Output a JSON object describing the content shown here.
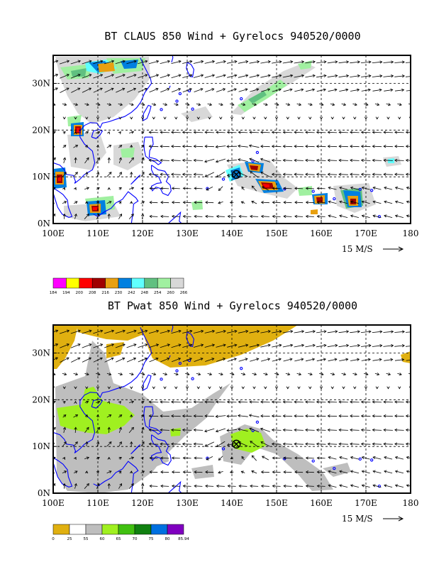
{
  "panel1": {
    "title": "BT CLAUS 850 Wind + Gyrelocs 940520/0000",
    "x_ticks": [
      "100E",
      "110E",
      "120E",
      "130E",
      "140E",
      "150E",
      "160E",
      "170E",
      "180"
    ],
    "y_ticks": [
      "0N",
      "10N",
      "20N",
      "30N"
    ],
    "ref_vector": "15 M/S",
    "colorbar": {
      "labels": [
        "184",
        "194",
        "200",
        "208",
        "216",
        "230",
        "242",
        "248",
        "254",
        "260",
        "266"
      ],
      "colors": [
        "#ff00ff",
        "#ffff00",
        "#ff0000",
        "#a00000",
        "#e8a010",
        "#0080e0",
        "#60ffff",
        "#60c080",
        "#a0f0a0",
        "#d8d8d8"
      ]
    }
  },
  "panel2": {
    "title": "BT Pwat 850 Wind + Gyrelocs 940520/0000",
    "x_ticks": [
      "100E",
      "110E",
      "120E",
      "130E",
      "140E",
      "150E",
      "160E",
      "170E",
      "180"
    ],
    "y_ticks": [
      "0N",
      "10N",
      "20N",
      "30N"
    ],
    "ref_vector": "15 M/S",
    "colorbar": {
      "labels": [
        "0",
        "25",
        "55",
        "60",
        "65",
        "70",
        "75",
        "80",
        "85.94"
      ],
      "colors": [
        "#e0b010",
        "#ffffff",
        "#bebebe",
        "#a0f020",
        "#40c010",
        "#108010",
        "#0070e0",
        "#8000c0"
      ]
    }
  },
  "gyreloc": {
    "lon": 141,
    "lat": 10.5
  },
  "colors": {
    "coast": "#0000ff",
    "frame": "#000000"
  }
}
